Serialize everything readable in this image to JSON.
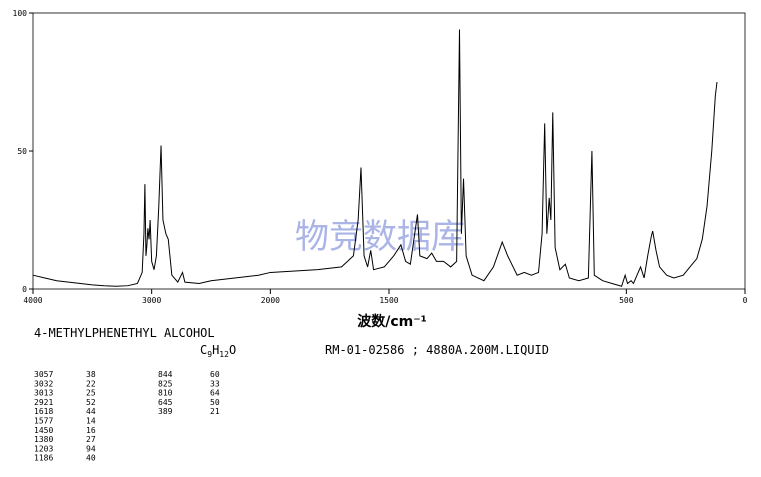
{
  "chart_data": {
    "type": "line",
    "x": [
      4000,
      3900,
      3800,
      3700,
      3600,
      3500,
      3400,
      3300,
      3200,
      3120,
      3080,
      3065,
      3057,
      3048,
      3040,
      3032,
      3022,
      3013,
      3000,
      2980,
      2960,
      2940,
      2921,
      2905,
      2880,
      2860,
      2830,
      2780,
      2740,
      2720,
      2600,
      2500,
      2300,
      2100,
      2000,
      1800,
      1700,
      1650,
      1630,
      1618,
      1605,
      1590,
      1577,
      1565,
      1520,
      1480,
      1450,
      1430,
      1410,
      1395,
      1380,
      1370,
      1340,
      1320,
      1300,
      1270,
      1240,
      1215,
      1203,
      1195,
      1186,
      1175,
      1150,
      1100,
      1060,
      1023,
      1000,
      960,
      930,
      900,
      870,
      855,
      844,
      835,
      825,
      818,
      810,
      800,
      780,
      757,
      740,
      700,
      660,
      645,
      635,
      600,
      560,
      520,
      505,
      495,
      480,
      470,
      455,
      440,
      425,
      410,
      395,
      389,
      375,
      360,
      330,
      300,
      260,
      232,
      203,
      180,
      160,
      140,
      125,
      118
    ],
    "series": [
      {
        "color": "#000000",
        "values": [
          5,
          4,
          3,
          2.5,
          2,
          1.5,
          1.2,
          1,
          1.2,
          2,
          6,
          20,
          38,
          12,
          16,
          22,
          18,
          25,
          10,
          7,
          12,
          30,
          52,
          25,
          20,
          18,
          5,
          2.5,
          6,
          2.5,
          2,
          3,
          4,
          5,
          6,
          7,
          8,
          12,
          25,
          44,
          12,
          8,
          14,
          7,
          8,
          12,
          16,
          10,
          9,
          18,
          27,
          12,
          11,
          13,
          10,
          10,
          8,
          10,
          94,
          20,
          40,
          12,
          5,
          3,
          8,
          17,
          12,
          5,
          6,
          5,
          6,
          20,
          60,
          20,
          33,
          25,
          64,
          15,
          7,
          9,
          4,
          3,
          4,
          50,
          5,
          3,
          2,
          1,
          5,
          2,
          3,
          2,
          5,
          8,
          4,
          12,
          19,
          21,
          14,
          8,
          5,
          4,
          5,
          8,
          11,
          18,
          30,
          50,
          70,
          75
        ]
      }
    ],
    "xlim": [
      4000,
      0
    ],
    "xbreak": 2000,
    "ylim": [
      0,
      100
    ],
    "xticks": [
      4000,
      3000,
      2000,
      1500,
      500,
      0
    ],
    "yticks": [
      0,
      50,
      100
    ],
    "xlabel": "波数/cm⁻¹",
    "watermark": "物竞数据库"
  },
  "compound": "4-METHYLPHENETHYL ALCOHOL",
  "formula": "C9H12O",
  "catalog": "RM-01-02586 ; 4880A.200M.LIQUID",
  "peaks": [
    [
      3057,
      38
    ],
    [
      3032,
      22
    ],
    [
      3013,
      25
    ],
    [
      2921,
      52
    ],
    [
      1618,
      44
    ],
    [
      1577,
      14
    ],
    [
      1450,
      16
    ],
    [
      1380,
      27
    ],
    [
      1203,
      94
    ],
    [
      1186,
      40
    ],
    [
      844,
      60
    ],
    [
      825,
      33
    ],
    [
      810,
      64
    ],
    [
      645,
      50
    ],
    [
      389,
      21
    ]
  ]
}
